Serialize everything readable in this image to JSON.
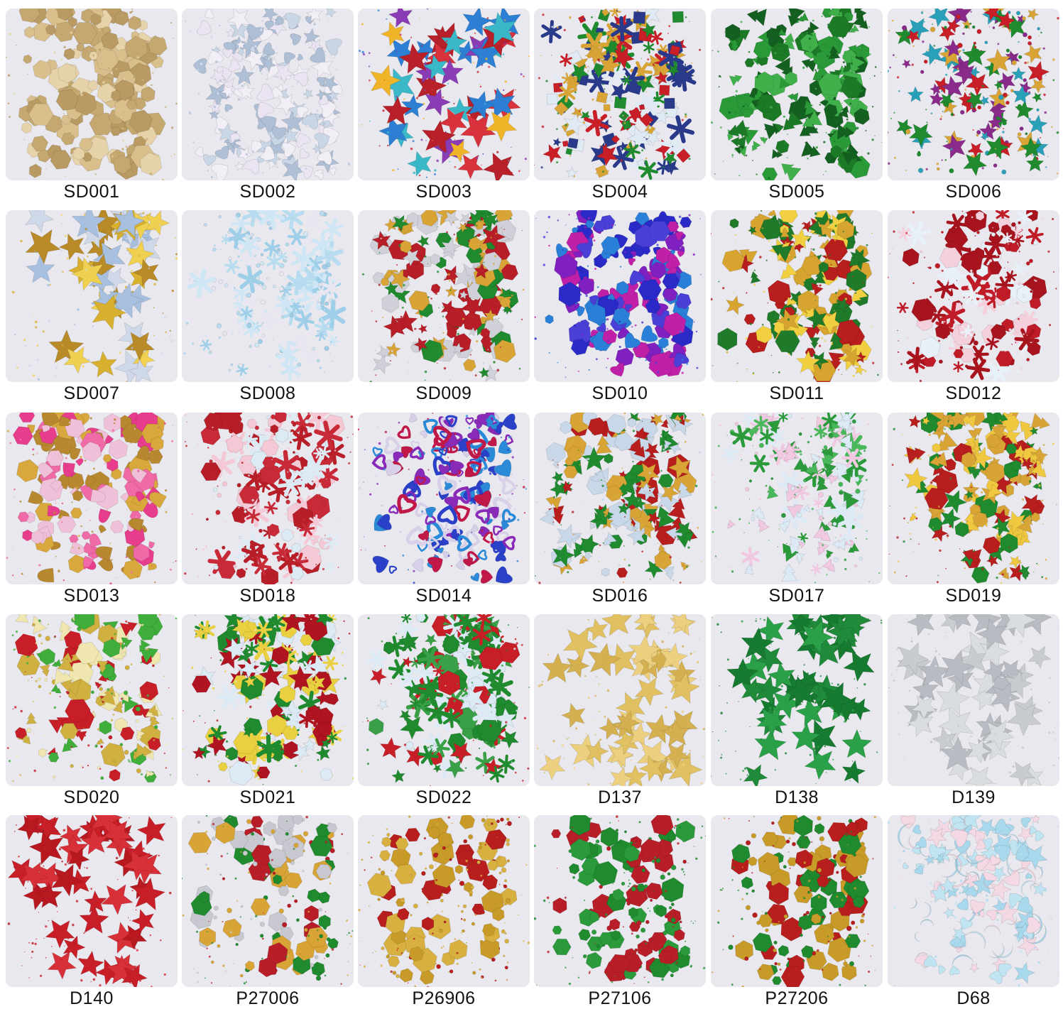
{
  "swatches": [
    {
      "code": "SD001",
      "colors": [
        "#d8bf8c",
        "#c4a870",
        "#e6d3aa",
        "#b89a62"
      ],
      "shapes": [
        "hex"
      ]
    },
    {
      "code": "SD002",
      "colors": [
        "#c8d6e6",
        "#e9e3f2",
        "#aebfd6",
        "#f1eef6"
      ],
      "shapes": [
        "heart",
        "star"
      ]
    },
    {
      "code": "SD003",
      "colors": [
        "#d8323c",
        "#2d7fd3",
        "#f0b428",
        "#8a3cb4",
        "#3ab8c8",
        "#b8202a"
      ],
      "shapes": [
        "star"
      ]
    },
    {
      "code": "SD004",
      "colors": [
        "#1f8a2e",
        "#c81e28",
        "#dfeaf4",
        "#2a3a8a",
        "#d8a436"
      ],
      "shapes": [
        "star",
        "snowflake",
        "square"
      ]
    },
    {
      "code": "SD005",
      "colors": [
        "#1c7a26",
        "#2a9a38",
        "#146020",
        "#3fb04a"
      ],
      "shapes": [
        "hex",
        "tree"
      ]
    },
    {
      "code": "SD006",
      "colors": [
        "#c81e28",
        "#1f8a2e",
        "#d8a436",
        "#2aa0b8",
        "#8a2a8a"
      ],
      "shapes": [
        "star",
        "dot"
      ]
    },
    {
      "code": "SD007",
      "colors": [
        "#d8b030",
        "#f0d050",
        "#b88a28",
        "#cfd8e8",
        "#a8c0e0"
      ],
      "shapes": [
        "star"
      ]
    },
    {
      "code": "SD008",
      "colors": [
        "#b8dcef",
        "#cfe6f4",
        "#e9e6f0",
        "#9fcfe8"
      ],
      "shapes": [
        "snowflake",
        "dot"
      ]
    },
    {
      "code": "SD009",
      "colors": [
        "#1f8a2e",
        "#b81e28",
        "#d0d0d8",
        "#d8a436"
      ],
      "shapes": [
        "hex",
        "star"
      ]
    },
    {
      "code": "SD010",
      "colors": [
        "#2a2ac8",
        "#c020a8",
        "#4a40d8",
        "#8020c0",
        "#2a80d8"
      ],
      "shapes": [
        "hex",
        "heart"
      ]
    },
    {
      "code": "SD011",
      "colors": [
        "#b81e1e",
        "#d8a430",
        "#1f7a2a",
        "#f0d040"
      ],
      "shapes": [
        "hex",
        "star",
        "tree"
      ]
    },
    {
      "code": "SD012",
      "colors": [
        "#a8141e",
        "#f4d0dc",
        "#e8f0f8",
        "#c01c28"
      ],
      "shapes": [
        "hex",
        "snowflake",
        "dot"
      ]
    },
    {
      "code": "SD013",
      "colors": [
        "#e83c8c",
        "#d8a83c",
        "#f0c0d8",
        "#b88830",
        "#f06aa8"
      ],
      "shapes": [
        "bell",
        "hex"
      ]
    },
    {
      "code": "SD018",
      "colors": [
        "#b81e28",
        "#c82a38",
        "#f4c8d4",
        "#dceaf4"
      ],
      "shapes": [
        "hex",
        "dot",
        "snowflake"
      ]
    },
    {
      "code": "SD014",
      "colors": [
        "#2a40c8",
        "#c01848",
        "#8a2ab8",
        "#2a8ad8",
        "#d8d0e8"
      ],
      "shapes": [
        "heart",
        "heartout"
      ]
    },
    {
      "code": "SD016",
      "colors": [
        "#b81e1e",
        "#1f8a2e",
        "#d8a436",
        "#c8d8e8"
      ],
      "shapes": [
        "hex",
        "star",
        "tree"
      ]
    },
    {
      "code": "SD017",
      "colors": [
        "#2a9a3a",
        "#f0c8e0",
        "#dceaf6",
        "#48b85a"
      ],
      "shapes": [
        "tree",
        "snowflake",
        "dot"
      ]
    },
    {
      "code": "SD019",
      "colors": [
        "#b81e1e",
        "#d8a436",
        "#1f8a2e",
        "#f0c840"
      ],
      "shapes": [
        "hex",
        "star",
        "tree"
      ]
    },
    {
      "code": "SD020",
      "colors": [
        "#d0b040",
        "#f0e6b0",
        "#3fae3a",
        "#c81e28"
      ],
      "shapes": [
        "hex",
        "dot",
        "tree"
      ]
    },
    {
      "code": "SD021",
      "colors": [
        "#b01420",
        "#1f8a2e",
        "#dceaf6",
        "#e8d040"
      ],
      "shapes": [
        "hex",
        "star",
        "snowflake"
      ]
    },
    {
      "code": "SD022",
      "colors": [
        "#1f8a2e",
        "#3aa048",
        "#c81e28",
        "#dceaf6"
      ],
      "shapes": [
        "hex",
        "snowflake",
        "star"
      ]
    },
    {
      "code": "D137",
      "colors": [
        "#e0c060",
        "#d4b050",
        "#ecd080"
      ],
      "shapes": [
        "star"
      ]
    },
    {
      "code": "D138",
      "colors": [
        "#1f8a3a",
        "#2aa048",
        "#167a30"
      ],
      "shapes": [
        "star"
      ]
    },
    {
      "code": "D139",
      "colors": [
        "#c8ccd0",
        "#b8bcc2",
        "#dadde0"
      ],
      "shapes": [
        "star"
      ]
    },
    {
      "code": "D140",
      "colors": [
        "#c81e28",
        "#b81820",
        "#d83038"
      ],
      "shapes": [
        "star"
      ]
    },
    {
      "code": "P27006",
      "colors": [
        "#1f8a2e",
        "#b81e28",
        "#c8c8d0",
        "#d8a436"
      ],
      "shapes": [
        "hex",
        "dot"
      ]
    },
    {
      "code": "P26906",
      "colors": [
        "#c89a28",
        "#b81e1e",
        "#d8b040"
      ],
      "shapes": [
        "hex",
        "dot"
      ]
    },
    {
      "code": "P27106",
      "colors": [
        "#1f8a2e",
        "#b81e28",
        "#2a9a3a"
      ],
      "shapes": [
        "hex",
        "dot"
      ]
    },
    {
      "code": "P27206",
      "colors": [
        "#c89a28",
        "#b81e1e",
        "#1f8a2e"
      ],
      "shapes": [
        "hex",
        "dot"
      ]
    },
    {
      "code": "D68",
      "colors": [
        "#a8d8ec",
        "#c0e4f2",
        "#f4d8e4"
      ],
      "shapes": [
        "star",
        "heart",
        "moon"
      ]
    }
  ]
}
